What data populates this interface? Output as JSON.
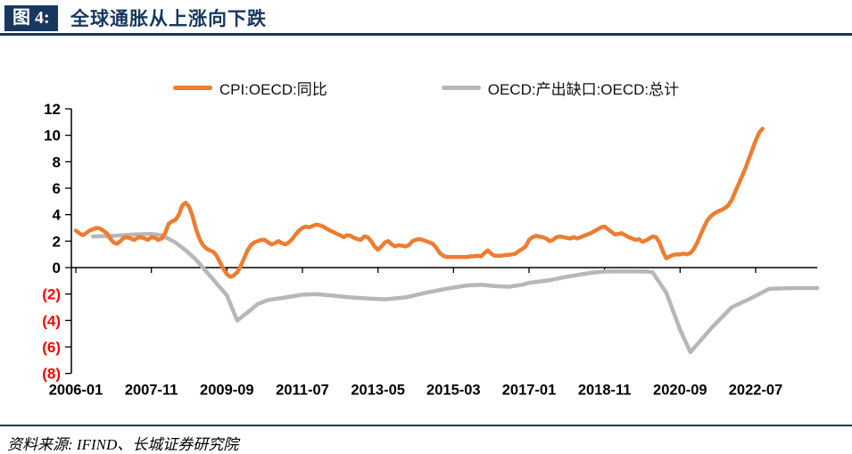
{
  "header": {
    "figure_label": "图 4:",
    "title": "全球通胀从上涨向下跌"
  },
  "legend": [
    {
      "label": "CPI:OECD:同比",
      "color": "#ED7D31"
    },
    {
      "label": "OECD:产出缺口:OECD:总计",
      "color": "#B7B7B7"
    }
  ],
  "source": {
    "text": "资料来源: IFIND、长城证券研究院"
  },
  "colors": {
    "accent_navy": "#17375E",
    "cpi_orange": "#ED7D31",
    "gap_gray": "#B7B7B7",
    "negative_tick_red": "#FF0000",
    "axis_black": "#000000"
  },
  "chart_data": {
    "type": "line",
    "title": "全球通胀从上涨向下跌",
    "xlabel": "",
    "ylabel": "",
    "ylim": [
      -8,
      12
    ],
    "y_ticks": [
      12,
      10,
      8,
      6,
      4,
      2,
      0,
      -2,
      -4,
      -6,
      -8
    ],
    "negative_label_style": "parentheses-red",
    "grid": false,
    "legend_position": "top-center",
    "x_unit": "months since 2006-01",
    "x_tick_months": [
      0,
      22,
      44,
      66,
      88,
      110,
      132,
      154,
      176,
      198
    ],
    "x_tick_labels": [
      "2006-01",
      "2007-11",
      "2009-09",
      "2011-07",
      "2013-05",
      "2015-03",
      "2017-01",
      "2018-11",
      "2020-09",
      "2022-07"
    ],
    "x_range_months": [
      0,
      216
    ],
    "series": [
      {
        "name": "OECD:产出缺口:OECD:总计",
        "color": "#B7B7B7",
        "width": 4.5,
        "points": [
          [
            5,
            2.35
          ],
          [
            11,
            2.4
          ],
          [
            17,
            2.5
          ],
          [
            22,
            2.55
          ],
          [
            25,
            2.45
          ],
          [
            29,
            1.9
          ],
          [
            32,
            1.3
          ],
          [
            35,
            0.6
          ],
          [
            38,
            -0.3
          ],
          [
            41,
            -1.2
          ],
          [
            44,
            -2.1
          ],
          [
            47,
            -4.0
          ],
          [
            50,
            -3.4
          ],
          [
            53,
            -2.75
          ],
          [
            56,
            -2.45
          ],
          [
            60,
            -2.3
          ],
          [
            66,
            -2.05
          ],
          [
            70,
            -2.0
          ],
          [
            74,
            -2.1
          ],
          [
            80,
            -2.25
          ],
          [
            86,
            -2.35
          ],
          [
            90,
            -2.4
          ],
          [
            96,
            -2.25
          ],
          [
            102,
            -1.9
          ],
          [
            108,
            -1.6
          ],
          [
            114,
            -1.35
          ],
          [
            118,
            -1.3
          ],
          [
            122,
            -1.4
          ],
          [
            126,
            -1.45
          ],
          [
            130,
            -1.3
          ],
          [
            132,
            -1.15
          ],
          [
            138,
            -0.95
          ],
          [
            144,
            -0.65
          ],
          [
            150,
            -0.4
          ],
          [
            154,
            -0.3
          ],
          [
            160,
            -0.28
          ],
          [
            166,
            -0.3
          ],
          [
            168,
            -0.35
          ],
          [
            172,
            -1.9
          ],
          [
            176,
            -4.7
          ],
          [
            179,
            -6.4
          ],
          [
            185,
            -4.6
          ],
          [
            191,
            -3.0
          ],
          [
            196,
            -2.4
          ],
          [
            202,
            -1.6
          ],
          [
            209,
            -1.55
          ],
          [
            216,
            -1.55
          ]
        ]
      },
      {
        "name": "CPI:OECD:同比",
        "color": "#ED7D31",
        "width": 4.5,
        "points": [
          [
            0,
            2.8
          ],
          [
            1,
            2.6
          ],
          [
            2,
            2.45
          ],
          [
            3,
            2.6
          ],
          [
            4,
            2.8
          ],
          [
            5,
            2.9
          ],
          [
            6,
            3.0
          ],
          [
            7,
            2.95
          ],
          [
            8,
            2.8
          ],
          [
            9,
            2.6
          ],
          [
            10,
            2.2
          ],
          [
            11,
            1.9
          ],
          [
            12,
            1.8
          ],
          [
            13,
            2.0
          ],
          [
            14,
            2.25
          ],
          [
            15,
            2.3
          ],
          [
            16,
            2.2
          ],
          [
            17,
            2.1
          ],
          [
            18,
            2.25
          ],
          [
            19,
            2.3
          ],
          [
            20,
            2.2
          ],
          [
            21,
            2.1
          ],
          [
            22,
            2.3
          ],
          [
            23,
            2.25
          ],
          [
            24,
            2.1
          ],
          [
            25,
            2.2
          ],
          [
            26,
            2.6
          ],
          [
            27,
            3.3
          ],
          [
            28,
            3.5
          ],
          [
            29,
            3.6
          ],
          [
            30,
            4.0
          ],
          [
            31,
            4.7
          ],
          [
            32,
            4.9
          ],
          [
            33,
            4.6
          ],
          [
            34,
            3.9
          ],
          [
            35,
            2.9
          ],
          [
            36,
            2.2
          ],
          [
            37,
            1.7
          ],
          [
            38,
            1.45
          ],
          [
            39,
            1.3
          ],
          [
            40,
            1.2
          ],
          [
            41,
            0.9
          ],
          [
            42,
            0.4
          ],
          [
            43,
            -0.1
          ],
          [
            44,
            -0.5
          ],
          [
            45,
            -0.7
          ],
          [
            46,
            -0.6
          ],
          [
            47,
            -0.35
          ],
          [
            48,
            0.1
          ],
          [
            49,
            0.7
          ],
          [
            50,
            1.3
          ],
          [
            51,
            1.7
          ],
          [
            52,
            1.9
          ],
          [
            53,
            2.0
          ],
          [
            54,
            2.1
          ],
          [
            55,
            2.1
          ],
          [
            56,
            1.9
          ],
          [
            57,
            1.75
          ],
          [
            58,
            1.85
          ],
          [
            59,
            2.0
          ],
          [
            60,
            1.85
          ],
          [
            61,
            1.75
          ],
          [
            62,
            1.9
          ],
          [
            63,
            2.15
          ],
          [
            64,
            2.5
          ],
          [
            65,
            2.8
          ],
          [
            66,
            3.0
          ],
          [
            67,
            3.1
          ],
          [
            68,
            3.05
          ],
          [
            69,
            3.15
          ],
          [
            70,
            3.25
          ],
          [
            71,
            3.2
          ],
          [
            72,
            3.1
          ],
          [
            73,
            2.95
          ],
          [
            74,
            2.8
          ],
          [
            75,
            2.7
          ],
          [
            76,
            2.55
          ],
          [
            77,
            2.45
          ],
          [
            78,
            2.3
          ],
          [
            79,
            2.45
          ],
          [
            80,
            2.4
          ],
          [
            81,
            2.25
          ],
          [
            82,
            2.15
          ],
          [
            83,
            2.1
          ],
          [
            84,
            2.35
          ],
          [
            85,
            2.3
          ],
          [
            86,
            2.0
          ],
          [
            87,
            1.6
          ],
          [
            88,
            1.35
          ],
          [
            89,
            1.6
          ],
          [
            90,
            1.9
          ],
          [
            91,
            2.0
          ],
          [
            92,
            1.75
          ],
          [
            93,
            1.6
          ],
          [
            94,
            1.7
          ],
          [
            95,
            1.65
          ],
          [
            96,
            1.6
          ],
          [
            97,
            1.7
          ],
          [
            98,
            2.0
          ],
          [
            99,
            2.1
          ],
          [
            100,
            2.15
          ],
          [
            101,
            2.1
          ],
          [
            102,
            2.0
          ],
          [
            103,
            1.9
          ],
          [
            104,
            1.8
          ],
          [
            105,
            1.5
          ],
          [
            106,
            1.1
          ],
          [
            107,
            0.9
          ],
          [
            108,
            0.8
          ],
          [
            109,
            0.8
          ],
          [
            110,
            0.8
          ],
          [
            111,
            0.8
          ],
          [
            112,
            0.8
          ],
          [
            113,
            0.8
          ],
          [
            114,
            0.8
          ],
          [
            115,
            0.85
          ],
          [
            116,
            0.85
          ],
          [
            117,
            0.9
          ],
          [
            118,
            0.85
          ],
          [
            119,
            1.1
          ],
          [
            120,
            1.3
          ],
          [
            121,
            1.05
          ],
          [
            122,
            0.9
          ],
          [
            123,
            0.9
          ],
          [
            124,
            0.9
          ],
          [
            125,
            0.95
          ],
          [
            126,
            0.95
          ],
          [
            127,
            1.0
          ],
          [
            128,
            1.05
          ],
          [
            129,
            1.25
          ],
          [
            130,
            1.4
          ],
          [
            131,
            1.6
          ],
          [
            132,
            2.1
          ],
          [
            133,
            2.3
          ],
          [
            134,
            2.4
          ],
          [
            135,
            2.35
          ],
          [
            136,
            2.3
          ],
          [
            137,
            2.2
          ],
          [
            138,
            2.0
          ],
          [
            139,
            2.1
          ],
          [
            140,
            2.3
          ],
          [
            141,
            2.35
          ],
          [
            142,
            2.3
          ],
          [
            143,
            2.25
          ],
          [
            144,
            2.2
          ],
          [
            145,
            2.3
          ],
          [
            146,
            2.2
          ],
          [
            147,
            2.3
          ],
          [
            148,
            2.4
          ],
          [
            149,
            2.5
          ],
          [
            150,
            2.6
          ],
          [
            151,
            2.75
          ],
          [
            152,
            2.9
          ],
          [
            153,
            3.05
          ],
          [
            154,
            3.1
          ],
          [
            155,
            2.9
          ],
          [
            156,
            2.7
          ],
          [
            157,
            2.5
          ],
          [
            158,
            2.55
          ],
          [
            159,
            2.6
          ],
          [
            160,
            2.45
          ],
          [
            161,
            2.3
          ],
          [
            162,
            2.2
          ],
          [
            163,
            2.1
          ],
          [
            164,
            2.15
          ],
          [
            165,
            1.95
          ],
          [
            166,
            2.05
          ],
          [
            167,
            2.2
          ],
          [
            168,
            2.35
          ],
          [
            169,
            2.3
          ],
          [
            170,
            1.9
          ],
          [
            171,
            1.2
          ],
          [
            172,
            0.7
          ],
          [
            173,
            0.85
          ],
          [
            174,
            0.95
          ],
          [
            175,
            1.0
          ],
          [
            176,
            1.0
          ],
          [
            177,
            1.05
          ],
          [
            178,
            1.0
          ],
          [
            179,
            1.1
          ],
          [
            180,
            1.4
          ],
          [
            181,
            1.9
          ],
          [
            182,
            2.5
          ],
          [
            183,
            3.1
          ],
          [
            184,
            3.6
          ],
          [
            185,
            3.9
          ],
          [
            186,
            4.1
          ],
          [
            187,
            4.25
          ],
          [
            188,
            4.35
          ],
          [
            189,
            4.5
          ],
          [
            190,
            4.7
          ],
          [
            191,
            5.1
          ],
          [
            192,
            5.7
          ],
          [
            193,
            6.3
          ],
          [
            194,
            6.9
          ],
          [
            195,
            7.5
          ],
          [
            196,
            8.2
          ],
          [
            197,
            8.9
          ],
          [
            198,
            9.6
          ],
          [
            199,
            10.2
          ],
          [
            200,
            10.5
          ]
        ]
      }
    ]
  }
}
